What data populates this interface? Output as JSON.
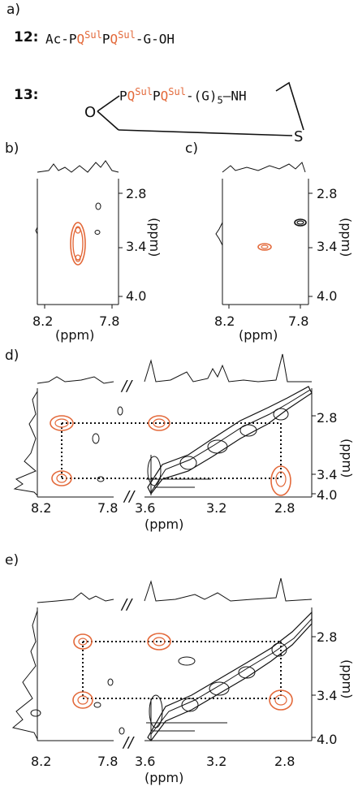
{
  "panels": {
    "a": "a)",
    "b": "b)",
    "c": "c)",
    "d": "d)",
    "e": "e)"
  },
  "compound12": {
    "label": "12:",
    "pre": "Ac-P",
    "q1": "Q",
    "sul1": "Sul",
    "p2": "P",
    "q2": "Q",
    "sul2": "Sul",
    "post": "-G-OH"
  },
  "compound13": {
    "label": "13:",
    "p1": "P",
    "q1": "Q",
    "sul1": "Sul",
    "p2": "P",
    "q2": "Q",
    "sul2": "Sul",
    "linker": "-(G)",
    "sub5": "5",
    "nh": "—NH",
    "o": "O",
    "s": "S"
  },
  "axes": {
    "unit": "(ppm)",
    "break": "//",
    "b_x": [
      "8.2",
      "7.8"
    ],
    "b_y": [
      "2.8",
      "3.4",
      "4.0"
    ],
    "c_x": [
      "8.2",
      "7.8"
    ],
    "c_y": [
      "2.8",
      "3.4",
      "4.0"
    ],
    "d_x": [
      "8.2",
      "7.8",
      "3.6",
      "3.2",
      "2.8"
    ],
    "d_y": [
      "2.8",
      "3.4",
      "4.0"
    ],
    "e_x": [
      "8.2",
      "7.8",
      "3.6",
      "3.2",
      "2.8"
    ],
    "e_y": [
      "2.8",
      "3.4",
      "4.0"
    ]
  },
  "colors": {
    "highlight": "#e3693a",
    "contour": "#111111"
  }
}
